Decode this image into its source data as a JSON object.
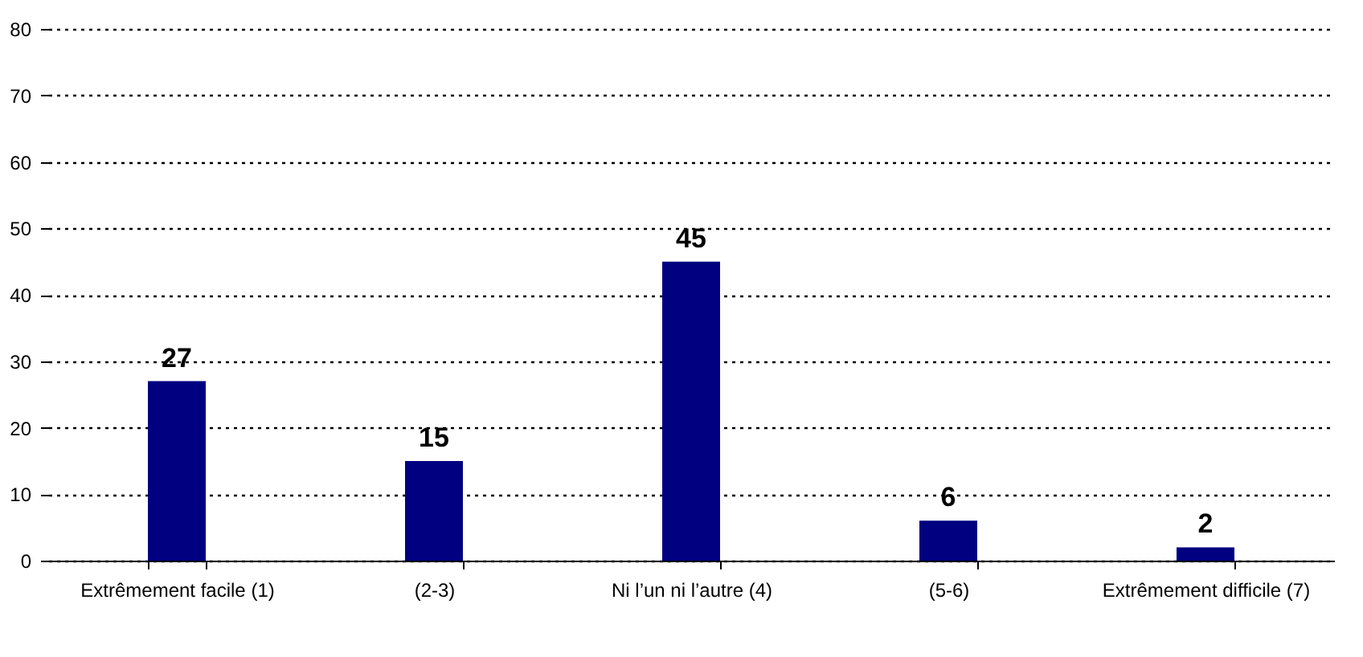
{
  "chart_data": {
    "type": "bar",
    "categories": [
      "Extrêmement facile\n(1)",
      "(2-3)",
      "Ni l’un ni l’autre  (4)",
      "(5-6)",
      "Extrêmement difficile\n(7)"
    ],
    "values": [
      27,
      15,
      45,
      6,
      2
    ],
    "color": "#000080",
    "ylim": [
      0,
      80
    ],
    "yticks": [
      0,
      10,
      20,
      30,
      40,
      50,
      60,
      70,
      80
    ],
    "grid": "y",
    "data_labels": true
  }
}
